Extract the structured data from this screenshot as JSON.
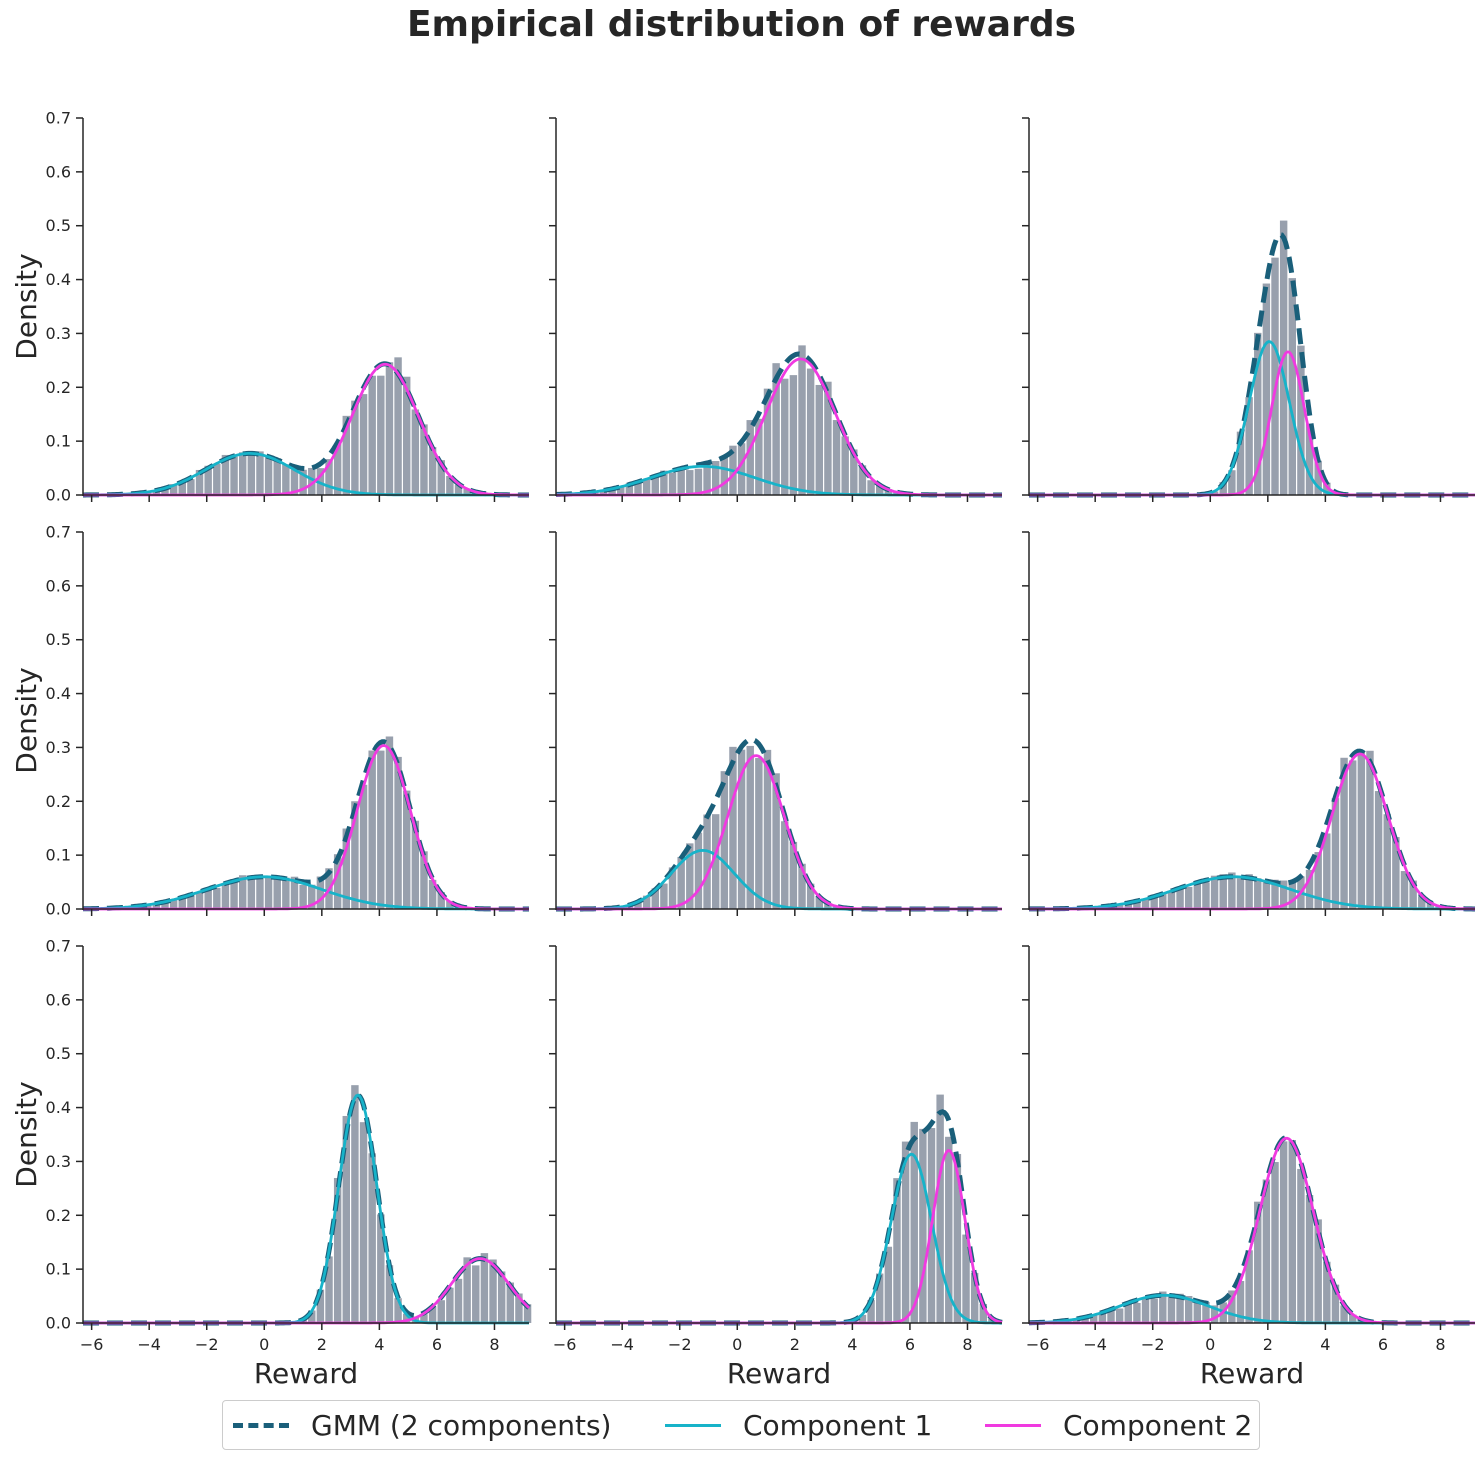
{
  "title": "Empirical distribution of rewards",
  "colors": {
    "gmm": "#1a5f7a",
    "comp1": "#17b3c9",
    "comp2": "#f03ae0",
    "bars": "#98a0ad",
    "axis": "#262626"
  },
  "legend": {
    "gmm": "GMM (2 components)",
    "comp1": "Component 1",
    "comp2": "Component 2"
  },
  "chart_data": {
    "type": "histogram-with-gmm-fit",
    "layout": "3x3 grid",
    "xlabel": "Reward",
    "ylabel": "Density",
    "xlim": [
      -6.3,
      9.2
    ],
    "ylim": [
      0,
      0.7
    ],
    "xticks": [
      -6,
      -4,
      -2,
      0,
      2,
      4,
      6,
      8
    ],
    "xtick_labels": [
      "−6",
      "−4",
      "−2",
      "0",
      "2",
      "4",
      "6",
      "8"
    ],
    "yticks": [
      0.0,
      0.1,
      0.2,
      0.3,
      0.4,
      0.5,
      0.6,
      0.7
    ],
    "ytick_labels": [
      "0.0",
      "0.1",
      "0.2",
      "0.3",
      "0.4",
      "0.5",
      "0.6",
      "0.7"
    ],
    "series_names": [
      "GMM (2 components)",
      "Component 1",
      "Component 2"
    ],
    "panels": [
      {
        "c1": {
          "w": 0.3,
          "mu": -0.5,
          "sigma": 1.55
        },
        "c2": {
          "w": 0.7,
          "mu": 4.2,
          "sigma": 1.15
        }
      },
      {
        "c1": {
          "w": 0.24,
          "mu": -1.2,
          "sigma": 1.8
        },
        "c2": {
          "w": 0.76,
          "mu": 2.2,
          "sigma": 1.2
        }
      },
      {
        "c1": {
          "w": 0.5,
          "mu": 2.05,
          "sigma": 0.7
        },
        "c2": {
          "w": 0.38,
          "mu": 2.7,
          "sigma": 0.57
        }
      },
      {
        "c1": {
          "w": 0.3,
          "mu": 0.0,
          "sigma": 2.0
        },
        "c2": {
          "w": 0.7,
          "mu": 4.15,
          "sigma": 0.92
        }
      },
      {
        "c1": {
          "w": 0.3,
          "mu": -1.2,
          "sigma": 1.1
        },
        "c2": {
          "w": 0.7,
          "mu": 0.65,
          "sigma": 0.98
        }
      },
      {
        "c1": {
          "w": 0.3,
          "mu": 0.8,
          "sigma": 2.0
        },
        "c2": {
          "w": 0.7,
          "mu": 5.2,
          "sigma": 0.97
        }
      },
      {
        "c1": {
          "w": 0.7,
          "mu": 3.25,
          "sigma": 0.66
        },
        "c2": {
          "w": 0.3,
          "mu": 7.5,
          "sigma": 1.0
        }
      },
      {
        "c1": {
          "w": 0.55,
          "mu": 6.05,
          "sigma": 0.7
        },
        "c2": {
          "w": 0.45,
          "mu": 7.35,
          "sigma": 0.56
        }
      },
      {
        "c1": {
          "w": 0.2,
          "mu": -1.6,
          "sigma": 1.55
        },
        "c2": {
          "w": 0.8,
          "mu": 2.65,
          "sigma": 0.93
        }
      }
    ]
  }
}
